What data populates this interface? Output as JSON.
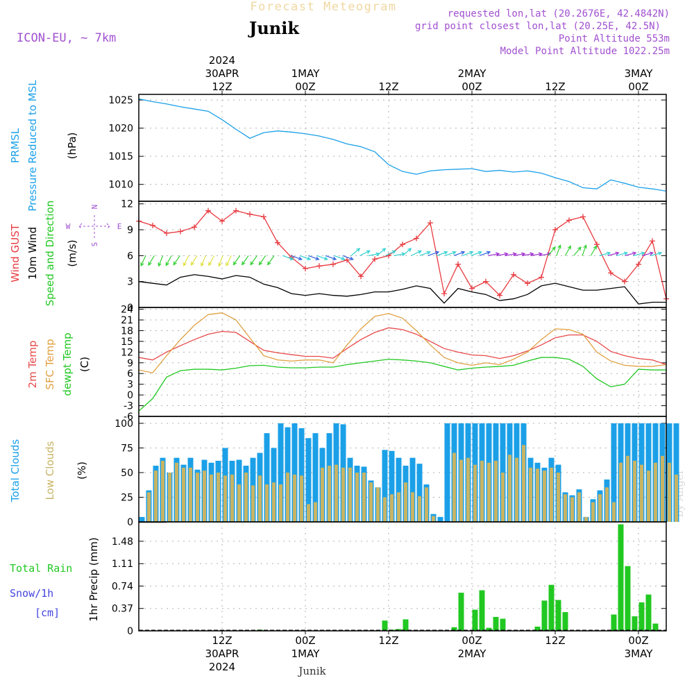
{
  "header": {
    "product_title": "Forecast Meteogram",
    "location": "Junik",
    "model": "ICON-EU, ~ 7km",
    "requested": "requested lon,lat (20.2676E, 42.4842N)",
    "grid_point": "grid point closest lon,lat (20.25E, 42.5N)",
    "point_altitude": "Point Altitude 553m",
    "model_altitude": "Model Point Altitude 1022.25m",
    "footer_location": "Junik",
    "watermark": "by Angel"
  },
  "colors": {
    "pressure": "#1ba0e8",
    "gust": "#e8393f",
    "wind10m": "#000000",
    "temp2m": "#e84848",
    "sfc_temp": "#e0a040",
    "dewpoint": "#22c822",
    "total_clouds": "#1ba0e8",
    "low_clouds": "#c8b464",
    "precip": "#22c822",
    "snow": "#4444e0",
    "compass": "#a050d0"
  },
  "time_axis": {
    "top_labels": [
      {
        "t": 12,
        "lines": [
          "2024",
          "30APR",
          "12Z"
        ]
      },
      {
        "t": 24,
        "lines": [
          "",
          "1MAY",
          "00Z"
        ]
      },
      {
        "t": 36,
        "lines": [
          "",
          "",
          "12Z"
        ]
      },
      {
        "t": 48,
        "lines": [
          "",
          "2MAY",
          "00Z"
        ]
      },
      {
        "t": 60,
        "lines": [
          "",
          "",
          "12Z"
        ]
      },
      {
        "t": 72,
        "lines": [
          "",
          "3MAY",
          "00Z"
        ]
      }
    ],
    "bottom_labels": [
      {
        "t": 12,
        "lines": [
          "12Z",
          "30APR",
          "2024"
        ]
      },
      {
        "t": 24,
        "lines": [
          "00Z",
          "1MAY",
          ""
        ]
      },
      {
        "t": 36,
        "lines": [
          "12Z",
          "",
          ""
        ]
      },
      {
        "t": 48,
        "lines": [
          "00Z",
          "2MAY",
          ""
        ]
      },
      {
        "t": 60,
        "lines": [
          "12Z",
          "",
          ""
        ]
      },
      {
        "t": 72,
        "lines": [
          "00Z",
          "3MAY",
          ""
        ]
      }
    ]
  },
  "chart_data": [
    {
      "type": "line",
      "panel": "pressure",
      "ylabels": [
        {
          "text": "PRMSL",
          "color": "#1ba0e8"
        },
        {
          "text": "Pressure Reduced to MSL",
          "color": "#1ba0e8"
        },
        {
          "text": "(hPa)",
          "color": "#000000"
        }
      ],
      "ylim": [
        1007,
        1026
      ],
      "yticks": [
        1010,
        1015,
        1020,
        1025
      ],
      "x": [
        0,
        2,
        4,
        6,
        8,
        10,
        12,
        14,
        16,
        18,
        20,
        22,
        24,
        26,
        28,
        30,
        32,
        34,
        36,
        38,
        40,
        42,
        44,
        46,
        48,
        50,
        52,
        54,
        56,
        58,
        60,
        62,
        64,
        66,
        68,
        70,
        72,
        74,
        76
      ],
      "series": [
        {
          "key": "prmsl",
          "values": [
            1025.2,
            1024.7,
            1024.3,
            1023.8,
            1023.4,
            1023.0,
            1021.5,
            1019.8,
            1018.2,
            1019.2,
            1019.5,
            1019.3,
            1019.0,
            1018.6,
            1018.0,
            1017.2,
            1016.7,
            1015.8,
            1013.5,
            1012.3,
            1011.8,
            1012.4,
            1012.6,
            1012.7,
            1012.8,
            1012.3,
            1012.5,
            1012.2,
            1012.4,
            1012.0,
            1011.2,
            1010.5,
            1009.4,
            1009.2,
            1010.8,
            1010.2,
            1009.5,
            1009.2,
            1008.8
          ]
        }
      ]
    },
    {
      "type": "line",
      "panel": "wind",
      "ylabels": [
        {
          "text": "Wind GUST",
          "color": "#e8393f"
        },
        {
          "text": "10m Wind",
          "color": "#000000"
        },
        {
          "text": "Speed and Direction",
          "color": "#22c822"
        },
        {
          "text": "(m/s)",
          "color": "#000000"
        }
      ],
      "ylim": [
        0,
        12.3
      ],
      "yticks": [
        0,
        3,
        6,
        9,
        12
      ],
      "compass": {
        "n": "N",
        "s": "S",
        "w": "W",
        "e": "E"
      },
      "x": [
        0,
        2,
        4,
        6,
        8,
        10,
        12,
        14,
        16,
        18,
        20,
        22,
        24,
        26,
        28,
        30,
        32,
        34,
        36,
        38,
        40,
        42,
        44,
        46,
        48,
        50,
        52,
        54,
        56,
        58,
        60,
        62,
        64,
        66,
        68,
        70,
        72,
        74,
        76
      ],
      "series": [
        {
          "key": "gust",
          "values": [
            10.0,
            9.5,
            8.6,
            8.8,
            9.3,
            11.2,
            10.0,
            11.2,
            10.8,
            10.5,
            7.5,
            5.8,
            4.5,
            4.8,
            5.0,
            5.5,
            3.6,
            5.6,
            6.0,
            7.3,
            8.0,
            9.8,
            1.6,
            5.0,
            2.2,
            3.0,
            1.4,
            3.8,
            2.8,
            3.5,
            9.0,
            10.1,
            10.5,
            7.3,
            4.0,
            3.0,
            5.0,
            7.7,
            1.0
          ]
        },
        {
          "key": "wind10m",
          "values": [
            3.0,
            2.8,
            2.6,
            3.5,
            3.8,
            3.6,
            3.3,
            3.7,
            3.5,
            2.7,
            2.3,
            1.6,
            1.4,
            1.6,
            1.4,
            1.3,
            1.5,
            1.8,
            1.8,
            2.1,
            2.5,
            2.2,
            0.5,
            2.2,
            1.8,
            1.5,
            0.8,
            1.0,
            1.5,
            2.5,
            2.8,
            2.4,
            2.0,
            2.0,
            2.2,
            2.4,
            0.4,
            0.6,
            0.6
          ]
        }
      ]
    },
    {
      "type": "line",
      "panel": "temperature",
      "ylabels": [
        {
          "text": "2m Temp",
          "color": "#e84848"
        },
        {
          "text": "SFC Temp",
          "color": "#e0a040"
        },
        {
          "text": "dewpt Temp",
          "color": "#22c822"
        },
        {
          "text": "(C)",
          "color": "#000000"
        }
      ],
      "ylim": [
        -6,
        24.5
      ],
      "yticks": [
        -6,
        -3,
        0,
        3,
        6,
        9,
        12,
        15,
        18,
        21,
        24
      ],
      "x": [
        0,
        2,
        4,
        6,
        8,
        10,
        12,
        14,
        16,
        18,
        20,
        22,
        24,
        26,
        28,
        30,
        32,
        34,
        36,
        38,
        40,
        42,
        44,
        46,
        48,
        50,
        52,
        54,
        56,
        58,
        60,
        62,
        64,
        66,
        68,
        70,
        72,
        74,
        76
      ],
      "series": [
        {
          "key": "t2m",
          "values": [
            10.5,
            9.8,
            12.0,
            13.8,
            15.5,
            17.0,
            17.8,
            17.5,
            15.0,
            12.5,
            11.8,
            11.3,
            10.8,
            10.8,
            10.3,
            13.0,
            15.5,
            17.5,
            18.8,
            18.3,
            17.0,
            15.0,
            13.0,
            12.0,
            11.2,
            11.0,
            10.2,
            11.0,
            12.3,
            14.0,
            16.0,
            16.8,
            16.8,
            15.0,
            12.2,
            11.0,
            10.2,
            9.8,
            8.5
          ]
        },
        {
          "key": "sfc",
          "values": [
            7.0,
            6.2,
            11.0,
            15.5,
            19.5,
            22.5,
            23.0,
            21.0,
            16.0,
            11.0,
            9.8,
            9.5,
            9.8,
            9.8,
            9.0,
            14.0,
            18.5,
            22.0,
            22.8,
            21.5,
            18.0,
            14.0,
            10.5,
            9.0,
            8.3,
            9.0,
            8.5,
            10.0,
            12.0,
            15.5,
            18.5,
            18.3,
            17.0,
            12.0,
            9.5,
            8.3,
            8.0,
            8.0,
            8.5
          ]
        },
        {
          "key": "dewpt",
          "values": [
            -4.5,
            -1.0,
            5.0,
            6.8,
            7.2,
            7.2,
            7.0,
            7.5,
            8.2,
            8.3,
            7.8,
            7.6,
            7.6,
            7.8,
            7.8,
            8.5,
            9.0,
            9.5,
            10.0,
            9.8,
            9.5,
            9.0,
            8.0,
            7.0,
            7.5,
            7.8,
            8.0,
            8.3,
            9.5,
            10.5,
            10.5,
            10.0,
            8.0,
            4.5,
            2.3,
            3.0,
            7.2,
            7.0,
            7.0
          ]
        }
      ]
    },
    {
      "type": "bar",
      "panel": "clouds",
      "ylabels": [
        {
          "text": "Total Clouds",
          "color": "#1ba0e8"
        },
        {
          "text": "Low Clouds",
          "color": "#c8b464"
        },
        {
          "text": "(%)",
          "color": "#000000"
        }
      ],
      "ylim": [
        0,
        107
      ],
      "yticks": [
        0,
        25,
        50,
        75,
        100
      ],
      "x_start": -1,
      "series": [
        {
          "key": "total",
          "values": [
            0,
            5,
            32,
            57,
            65,
            50,
            65,
            58,
            65,
            53,
            63,
            60,
            62,
            75,
            62,
            63,
            57,
            65,
            70,
            90,
            75,
            100,
            96,
            100,
            95,
            85,
            90,
            75,
            90,
            100,
            99,
            65,
            57,
            56,
            42,
            35,
            73,
            72,
            65,
            57,
            65,
            59,
            38,
            8,
            5,
            100,
            100,
            100,
            100,
            100,
            100,
            100,
            100,
            100,
            100,
            100,
            100,
            65,
            60,
            55,
            65,
            58,
            30,
            27,
            33,
            5,
            23,
            32,
            43,
            100,
            100,
            100,
            100,
            100,
            100,
            100,
            100,
            100,
            100
          ]
        },
        {
          "key": "low",
          "values": [
            0,
            0,
            30,
            52,
            62,
            50,
            60,
            55,
            55,
            50,
            52,
            48,
            50,
            47,
            48,
            38,
            50,
            37,
            47,
            38,
            40,
            38,
            50,
            48,
            47,
            18,
            20,
            55,
            57,
            58,
            55,
            55,
            50,
            50,
            40,
            35,
            25,
            28,
            30,
            40,
            30,
            26,
            35,
            6,
            0,
            0,
            70,
            63,
            65,
            58,
            62,
            60,
            62,
            50,
            68,
            65,
            78,
            55,
            54,
            52,
            55,
            50,
            28,
            25,
            30,
            5,
            20,
            28,
            35,
            20,
            60,
            67,
            62,
            58,
            52,
            60,
            67,
            60,
            48
          ]
        }
      ]
    },
    {
      "type": "bar",
      "panel": "precip",
      "ylabels": [
        {
          "text": "1hr Precip (mm)",
          "color": "#000000"
        }
      ],
      "legend": [
        {
          "text": "Total  Rain",
          "color": "#22c822"
        },
        {
          "text": "Snow/1h",
          "color": "#4444e0"
        },
        {
          "text": "[cm]",
          "color": "#4444e0"
        }
      ],
      "ylim": [
        0,
        1.8
      ],
      "yticks": [
        0,
        0.37,
        0.74,
        1.11,
        1.48
      ],
      "x_start": -1,
      "series": [
        {
          "key": "rain",
          "values": [
            0,
            0,
            0,
            0,
            0,
            0,
            0,
            0,
            0,
            0,
            0,
            0,
            0,
            0,
            0,
            0,
            0,
            0,
            0.02,
            0,
            0,
            0,
            0,
            0,
            0,
            0,
            0,
            0,
            0,
            0,
            0,
            0,
            0,
            0,
            0,
            0.01,
            0.17,
            0.02,
            0.03,
            0.19,
            0,
            0,
            0,
            0,
            0,
            0,
            0.06,
            0.63,
            0,
            0.35,
            0.67,
            0.05,
            0.23,
            0.2,
            0,
            0,
            0,
            0,
            0.07,
            0.5,
            0.76,
            0.51,
            0.31,
            0,
            0,
            0,
            0,
            0,
            0,
            0.27,
            1.76,
            1.07,
            0.24,
            0.47,
            0.6,
            0.12,
            0,
            0,
            0
          ]
        }
      ]
    }
  ]
}
